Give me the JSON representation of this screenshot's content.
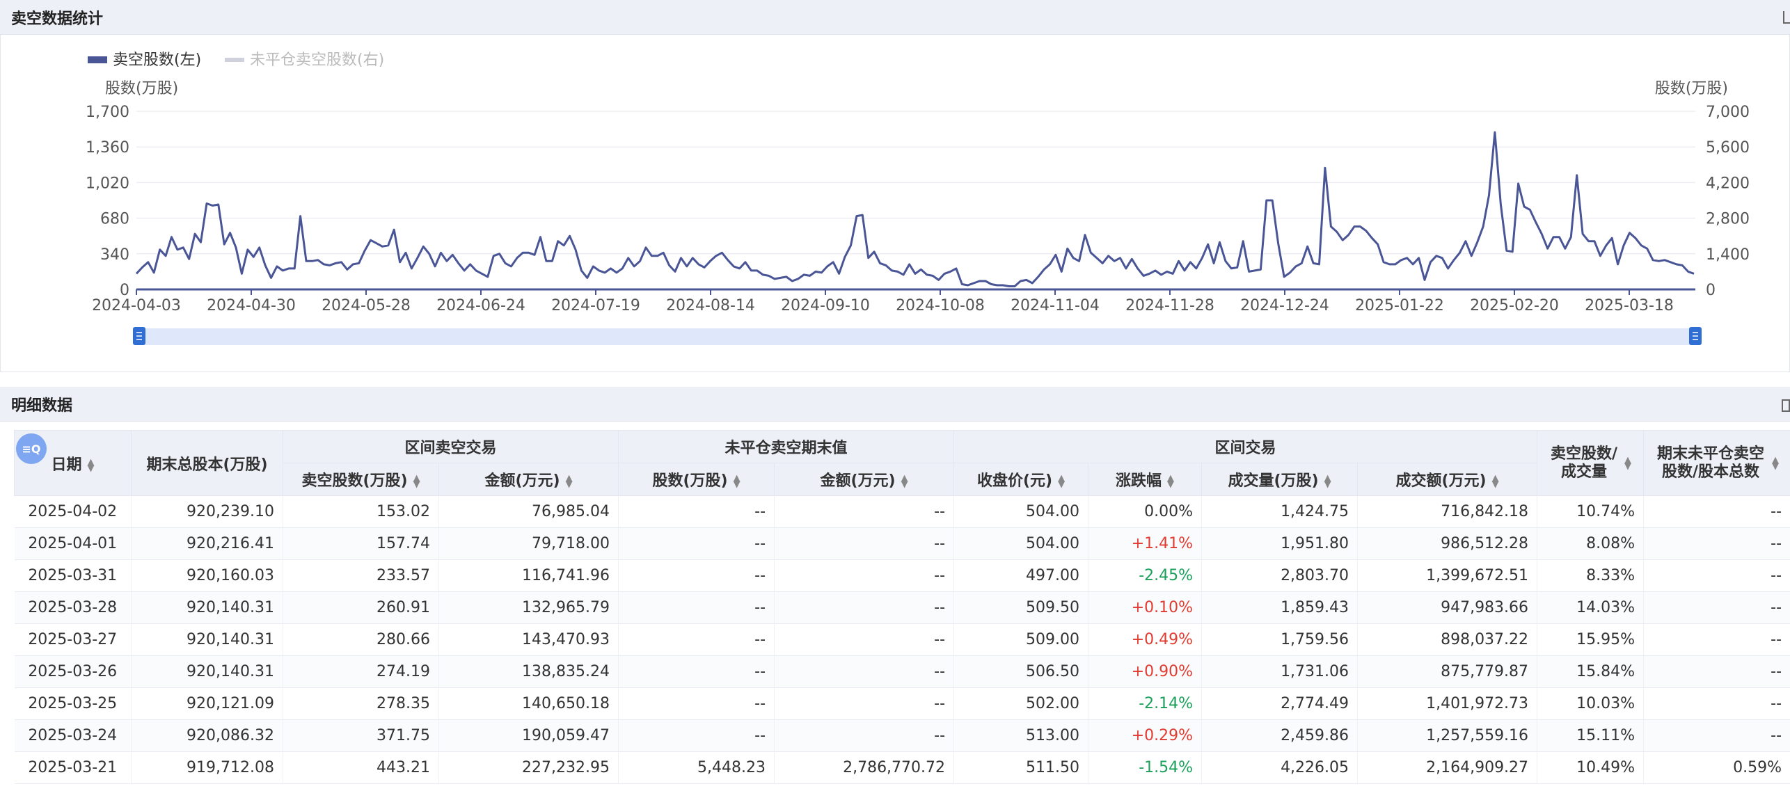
{
  "chart_section": {
    "title": "卖空数据统计"
  },
  "detail_section": {
    "title": "明细数据"
  },
  "colors": {
    "series1": "#4a5596",
    "series2": "#cfd2dc",
    "slider": "#dfe8fb",
    "handle": "#2f6fd4"
  },
  "chart_data": {
    "type": "line",
    "legend": [
      {
        "name": "卖空股数(左)",
        "active": true
      },
      {
        "name": "未平仓卖空股数(右)",
        "active": false
      }
    ],
    "legend_position": "top-left",
    "ylabel_left": "股数(万股)",
    "ylabel_right": "股数(万股)",
    "ylim_left": [
      0,
      1700
    ],
    "ylim_right": [
      0,
      7000
    ],
    "yticks_left": [
      "0",
      "340",
      "680",
      "1,020",
      "1,360",
      "1,700"
    ],
    "yticks_right": [
      "0",
      "1,400",
      "2,800",
      "4,200",
      "5,600",
      "7,000"
    ],
    "x_ticks": [
      "2024-04-03",
      "2024-04-30",
      "2024-05-28",
      "2024-06-24",
      "2024-07-19",
      "2024-08-14",
      "2024-09-10",
      "2024-10-08",
      "2024-11-04",
      "2024-11-28",
      "2024-12-24",
      "2025-01-22",
      "2025-02-20",
      "2025-03-18"
    ],
    "grid": true,
    "series": [
      {
        "name": "卖空股数(左)",
        "values": [
          150,
          210,
          260,
          160,
          380,
          320,
          500,
          380,
          400,
          290,
          530,
          450,
          820,
          800,
          810,
          430,
          540,
          400,
          150,
          380,
          310,
          400,
          230,
          110,
          220,
          180,
          200,
          200,
          700,
          270,
          270,
          280,
          240,
          230,
          250,
          260,
          190,
          240,
          250,
          370,
          470,
          440,
          410,
          420,
          570,
          260,
          350,
          200,
          300,
          410,
          340,
          220,
          350,
          270,
          330,
          250,
          180,
          240,
          180,
          150,
          120,
          320,
          340,
          250,
          220,
          300,
          350,
          350,
          330,
          500,
          270,
          270,
          460,
          420,
          510,
          380,
          180,
          110,
          220,
          180,
          160,
          200,
          160,
          200,
          300,
          220,
          270,
          400,
          320,
          320,
          350,
          230,
          170,
          300,
          220,
          300,
          240,
          210,
          270,
          320,
          350,
          280,
          220,
          200,
          260,
          180,
          180,
          140,
          130,
          100,
          110,
          120,
          80,
          100,
          140,
          130,
          170,
          160,
          220,
          260,
          150,
          310,
          420,
          700,
          710,
          300,
          360,
          250,
          230,
          180,
          170,
          140,
          240,
          150,
          190,
          140,
          130,
          90,
          150,
          170,
          200,
          50,
          40,
          60,
          80,
          80,
          50,
          40,
          40,
          30,
          30,
          80,
          90,
          60,
          120,
          190,
          240,
          330,
          170,
          390,
          300,
          270,
          520,
          350,
          300,
          250,
          320,
          270,
          300,
          200,
          290,
          200,
          130,
          150,
          180,
          140,
          170,
          150,
          270,
          180,
          260,
          200,
          300,
          430,
          250,
          450,
          270,
          200,
          210,
          460,
          170,
          180,
          190,
          850,
          850,
          440,
          120,
          160,
          220,
          250,
          410,
          250,
          240,
          1160,
          600,
          550,
          470,
          520,
          600,
          600,
          560,
          490,
          430,
          260,
          240,
          240,
          280,
          300,
          240,
          300,
          90,
          260,
          320,
          300,
          200,
          280,
          350,
          460,
          320,
          450,
          600,
          900,
          1500,
          810,
          370,
          360,
          1010,
          790,
          760,
          640,
          530,
          390,
          500,
          500,
          390,
          500,
          1090,
          530,
          460,
          460,
          320,
          420,
          490,
          240,
          420,
          540,
          490,
          420,
          390,
          280,
          270,
          280,
          260,
          240,
          230,
          170,
          150
        ],
        "ylim": [
          0,
          1700
        ]
      }
    ],
    "slider": {
      "start": "2024-04-03",
      "end": "2025-04-02"
    }
  },
  "table": {
    "group_headers": [
      "区间卖空交易",
      "未平仓卖空期末值",
      "区间交易"
    ],
    "col_date": "日期",
    "col_total": "期末总股本(万股)",
    "sub_headers": [
      "卖空股数(万股)",
      "金额(万元)",
      "股数(万股)",
      "金额(万元)",
      "收盘价(元)",
      "涨跌幅",
      "成交量(万股)",
      "成交额(万元)"
    ],
    "col_ratio1": "卖空股数/成交量",
    "col_ratio2": "期末未平仓卖空股数/股本总数",
    "filter_icon_label": "≡Q",
    "rows": [
      {
        "date": "2025-04-02",
        "total": "920,239.10",
        "ss": "153.02",
        "sa": "76,985.04",
        "os": "--",
        "oa": "--",
        "close": "504.00",
        "chg": "0.00%",
        "chgClass": "",
        "vol": "1,424.75",
        "amt": "716,842.18",
        "r1": "10.74%",
        "r2": "--"
      },
      {
        "date": "2025-04-01",
        "total": "920,216.41",
        "ss": "157.74",
        "sa": "79,718.00",
        "os": "--",
        "oa": "--",
        "close": "504.00",
        "chg": "+1.41%",
        "chgClass": "red",
        "vol": "1,951.80",
        "amt": "986,512.28",
        "r1": "8.08%",
        "r2": "--"
      },
      {
        "date": "2025-03-31",
        "total": "920,160.03",
        "ss": "233.57",
        "sa": "116,741.96",
        "os": "--",
        "oa": "--",
        "close": "497.00",
        "chg": "-2.45%",
        "chgClass": "green",
        "vol": "2,803.70",
        "amt": "1,399,672.51",
        "r1": "8.33%",
        "r2": "--"
      },
      {
        "date": "2025-03-28",
        "total": "920,140.31",
        "ss": "260.91",
        "sa": "132,965.79",
        "os": "--",
        "oa": "--",
        "close": "509.50",
        "chg": "+0.10%",
        "chgClass": "red",
        "vol": "1,859.43",
        "amt": "947,983.66",
        "r1": "14.03%",
        "r2": "--"
      },
      {
        "date": "2025-03-27",
        "total": "920,140.31",
        "ss": "280.66",
        "sa": "143,470.93",
        "os": "--",
        "oa": "--",
        "close": "509.00",
        "chg": "+0.49%",
        "chgClass": "red",
        "vol": "1,759.56",
        "amt": "898,037.22",
        "r1": "15.95%",
        "r2": "--"
      },
      {
        "date": "2025-03-26",
        "total": "920,140.31",
        "ss": "274.19",
        "sa": "138,835.24",
        "os": "--",
        "oa": "--",
        "close": "506.50",
        "chg": "+0.90%",
        "chgClass": "red",
        "vol": "1,731.06",
        "amt": "875,779.87",
        "r1": "15.84%",
        "r2": "--"
      },
      {
        "date": "2025-03-25",
        "total": "920,121.09",
        "ss": "278.35",
        "sa": "140,650.18",
        "os": "--",
        "oa": "--",
        "close": "502.00",
        "chg": "-2.14%",
        "chgClass": "green",
        "vol": "2,774.49",
        "amt": "1,401,972.73",
        "r1": "10.03%",
        "r2": "--"
      },
      {
        "date": "2025-03-24",
        "total": "920,086.32",
        "ss": "371.75",
        "sa": "190,059.47",
        "os": "--",
        "oa": "--",
        "close": "513.00",
        "chg": "+0.29%",
        "chgClass": "red",
        "vol": "2,459.86",
        "amt": "1,257,559.16",
        "r1": "15.11%",
        "r2": "--"
      },
      {
        "date": "2025-03-21",
        "total": "919,712.08",
        "ss": "443.21",
        "sa": "227,232.95",
        "os": "5,448.23",
        "oa": "2,786,770.72",
        "close": "511.50",
        "chg": "-1.54%",
        "chgClass": "green",
        "vol": "4,226.05",
        "amt": "2,164,909.27",
        "r1": "10.49%",
        "r2": "0.59%"
      }
    ]
  }
}
